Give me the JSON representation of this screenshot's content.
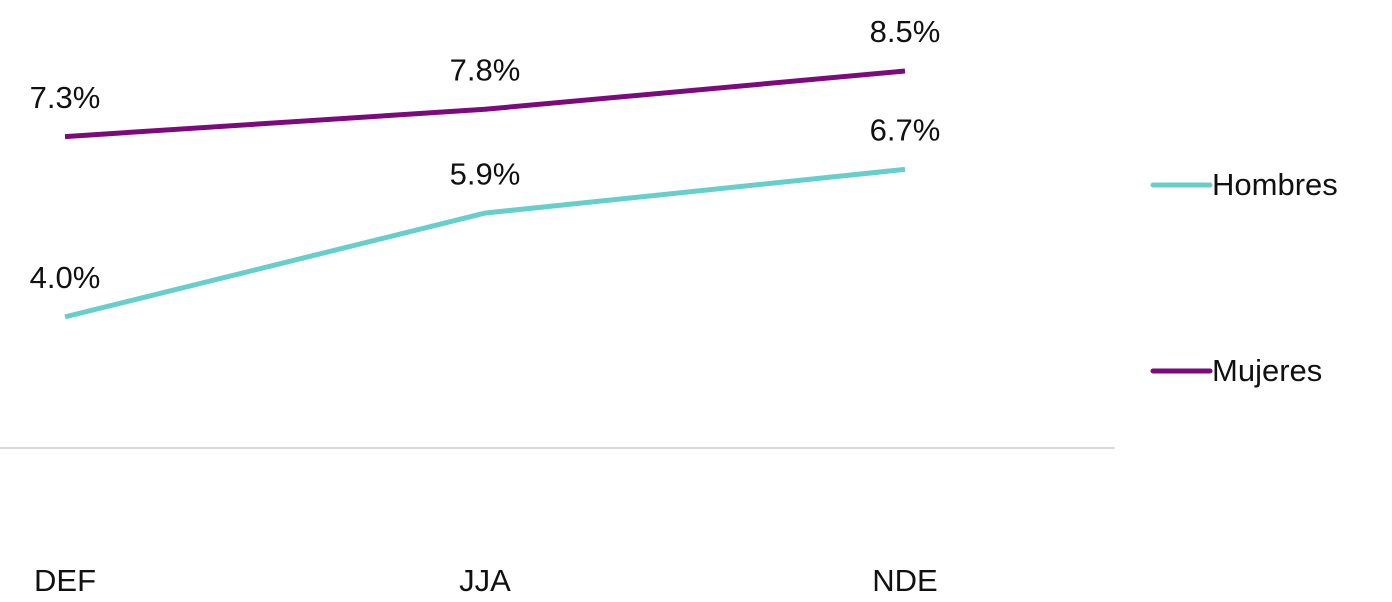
{
  "chart_data": {
    "type": "line",
    "categories": [
      "DEF",
      "JJA",
      "NDE"
    ],
    "series": [
      {
        "name": "Hombres",
        "color": "#66cfcb",
        "values": [
          4.0,
          5.9,
          6.7
        ],
        "value_labels": [
          "4.0%",
          "5.9%",
          "6.7%"
        ]
      },
      {
        "name": "Mujeres",
        "color": "#7d0a7d",
        "values": [
          7.3,
          7.8,
          8.5
        ],
        "value_labels": [
          "7.3%",
          "7.8%",
          "8.5%"
        ]
      }
    ],
    "ylim": [
      1.6,
      9.8
    ],
    "yticks": [],
    "grid": false,
    "legend": "right"
  }
}
